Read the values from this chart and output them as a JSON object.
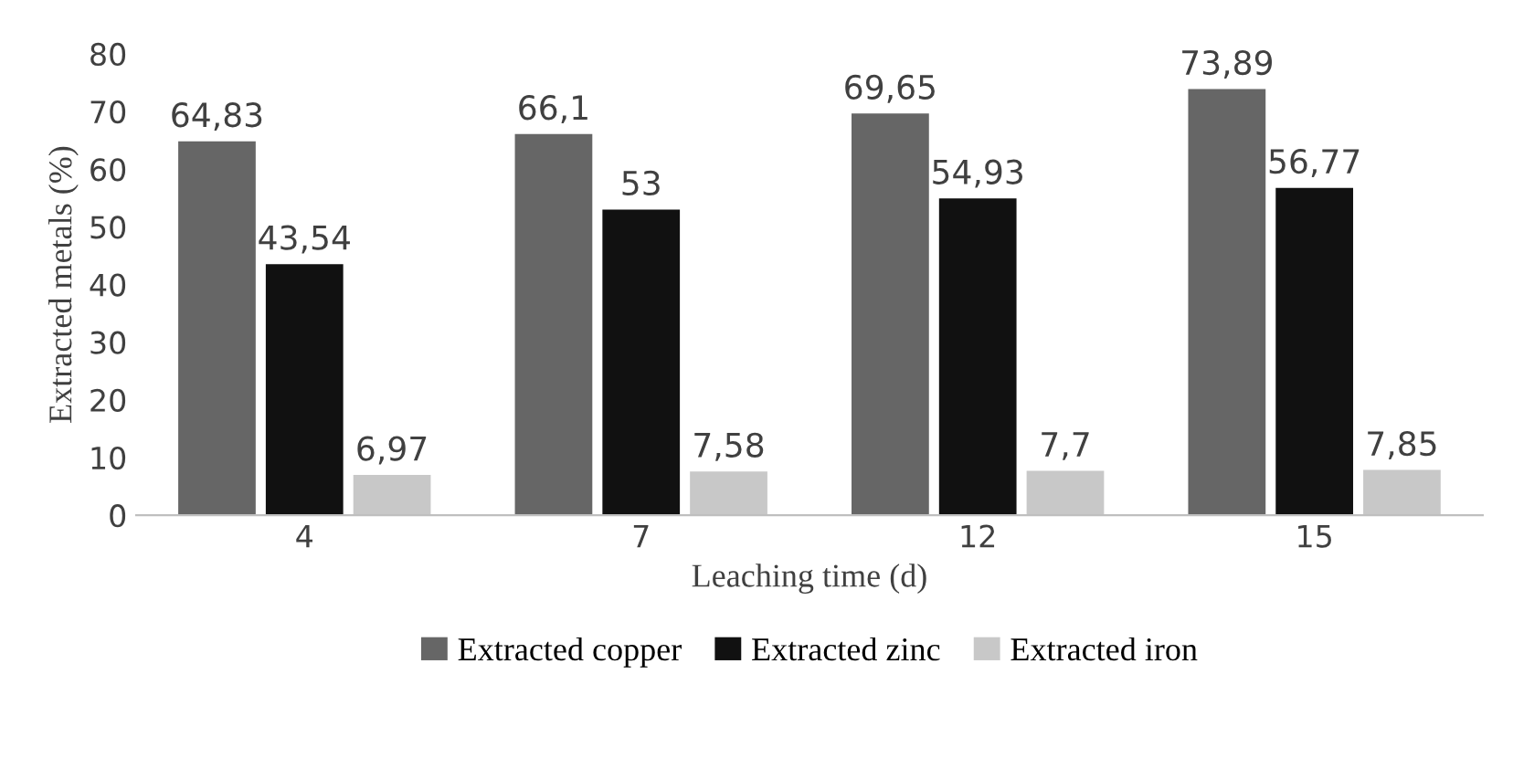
{
  "chart_data": {
    "type": "bar",
    "xlabel": "Leaching time (d)",
    "ylabel": "Extracted metals (%)",
    "categories": [
      "4",
      "7",
      "12",
      "15"
    ],
    "series": [
      {
        "name": "Extracted copper",
        "color": "#666666",
        "values": [
          64.83,
          66.1,
          69.65,
          73.89
        ],
        "value_labels": [
          "64,83",
          "66,1",
          "69,65",
          "73,89"
        ]
      },
      {
        "name": "Extracted zinc",
        "color": "#111111",
        "values": [
          43.54,
          53,
          54.93,
          56.77
        ],
        "value_labels": [
          "43,54",
          "53",
          "54,93",
          "56,77"
        ]
      },
      {
        "name": "Extracted iron",
        "color": "#c8c8c8",
        "values": [
          6.97,
          7.58,
          7.7,
          7.85
        ],
        "value_labels": [
          "6,97",
          "7,58",
          "7,7",
          "7,85"
        ]
      }
    ],
    "ylim": [
      0,
      80
    ],
    "yticks": [
      0,
      10,
      20,
      30,
      40,
      50,
      60,
      70,
      80
    ],
    "grid": false,
    "legend": "bottom"
  }
}
